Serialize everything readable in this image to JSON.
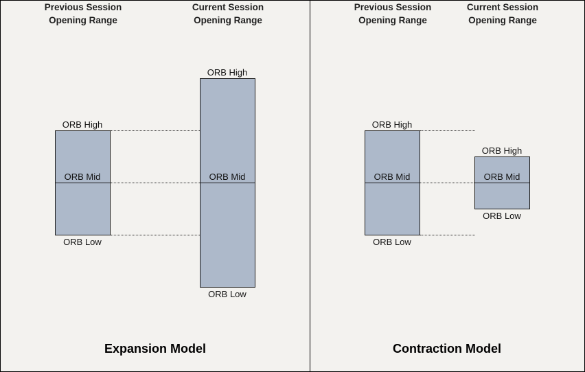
{
  "expansion": {
    "prev_header": [
      "Previous Session",
      "Opening Range"
    ],
    "curr_header": [
      "Current Session",
      "Opening Range"
    ],
    "prev_labels": {
      "high": "ORB High",
      "mid": "ORB Mid",
      "low": "ORB Low"
    },
    "curr_labels": {
      "high": "ORB High",
      "mid": "ORB Mid",
      "low": "ORB Low"
    },
    "title": "Expansion Model"
  },
  "contraction": {
    "prev_header": [
      "Previous Session",
      "Opening Range"
    ],
    "curr_header": [
      "Current Session",
      "Opening Range"
    ],
    "prev_labels": {
      "high": "ORB High",
      "mid": "ORB Mid",
      "low": "ORB Low"
    },
    "curr_labels": {
      "high": "ORB High",
      "mid": "ORB Mid",
      "low": "ORB Low"
    },
    "title": "Contraction Model"
  },
  "colors": {
    "range_box": "#adb9ca",
    "background": "#f3f2ef"
  }
}
